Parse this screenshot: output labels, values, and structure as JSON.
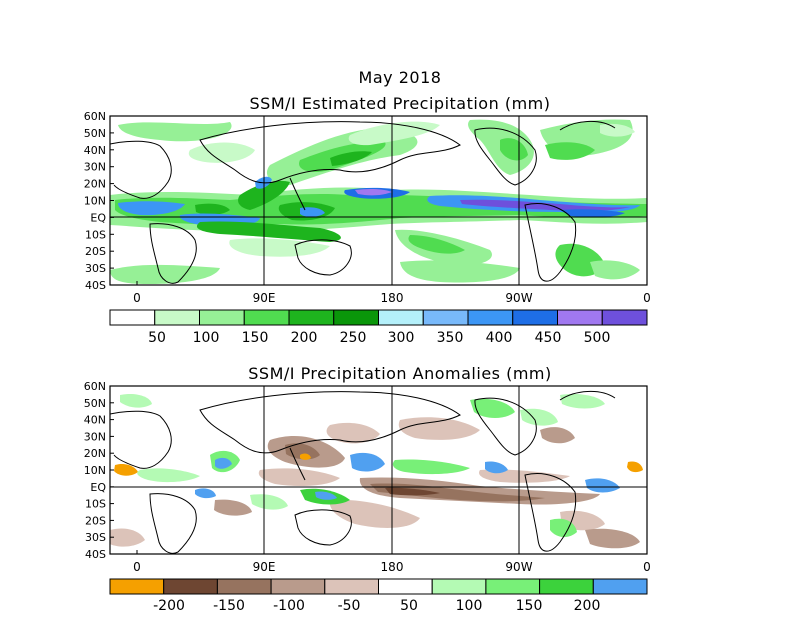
{
  "header": {
    "title": "May 2018"
  },
  "chart_data": [
    {
      "type": "heatmap",
      "title": "SSM/I Estimated Precipitation (mm)",
      "lat_labels": [
        "60N",
        "50N",
        "40N",
        "30N",
        "20N",
        "10N",
        "EQ",
        "10S",
        "20S",
        "30S",
        "40S"
      ],
      "lon_labels": [
        "0",
        "90E",
        "180",
        "90W",
        "0"
      ],
      "legend": {
        "colors": [
          "#ffffff",
          "#c8fac8",
          "#96f096",
          "#50dc50",
          "#1eb41e",
          "#0a960a",
          "#b4f0fa",
          "#78b9fa",
          "#3c96f5",
          "#1e6ee6",
          "#a078f0",
          "#6e50dc"
        ],
        "labels": [
          "50",
          "100",
          "150",
          "200",
          "250",
          "300",
          "350",
          "400",
          "450",
          "500"
        ]
      },
      "grid": true
    },
    {
      "type": "heatmap",
      "title": "SSM/I Precipitation Anomalies (mm)",
      "lat_labels": [
        "60N",
        "50N",
        "40N",
        "30N",
        "20N",
        "10N",
        "EQ",
        "10S",
        "20S",
        "30S",
        "40S"
      ],
      "lon_labels": [
        "0",
        "90E",
        "180",
        "90W",
        "0"
      ],
      "legend": {
        "colors": [
          "#f5a000",
          "#6e4632",
          "#96735f",
          "#b99b8c",
          "#dcc3b9",
          "#ffffff",
          "#b4fab4",
          "#78f078",
          "#3cd23c",
          "#50a0f0"
        ],
        "labels": [
          "-200",
          "-150",
          "-100",
          "-50",
          "50",
          "100",
          "150",
          "200"
        ]
      },
      "grid": true
    }
  ]
}
